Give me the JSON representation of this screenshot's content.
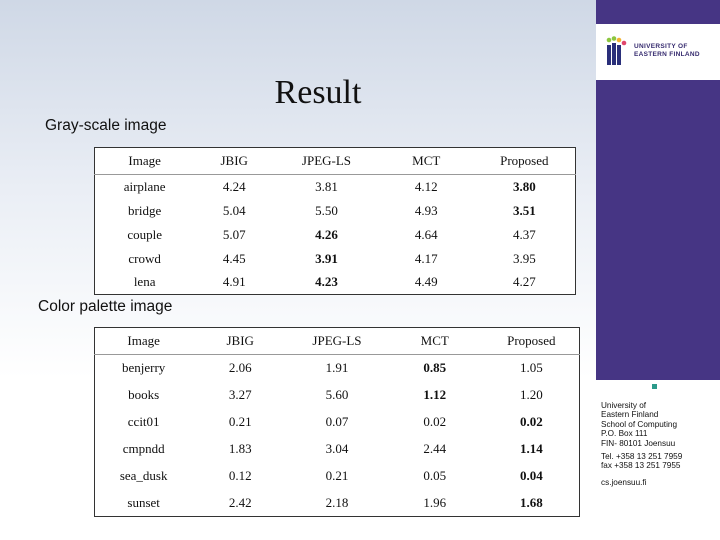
{
  "title": "Result",
  "gray_label": "Gray-scale image",
  "color_label": "Color palette image",
  "logo": {
    "line1": "UNIVERSITY OF",
    "line2": "EASTERN FINLAND"
  },
  "info": {
    "line1": "University of",
    "line2": "Eastern Finland",
    "line3": "School of Computing",
    "line4": "P.O. Box 111",
    "line5": "FIN- 80101 Joensuu",
    "line6": "Tel. +358 13 251 7959",
    "line7": "fax +358 13 251 7955",
    "line8": "cs.joensuu.fi"
  },
  "gray_table": {
    "headers": [
      "Image",
      "JBIG",
      "JPEG-LS",
      "MCT",
      "Proposed"
    ],
    "rows": [
      [
        "airplane",
        "4.24",
        "3.81",
        "4.12",
        "3.80"
      ],
      [
        "bridge",
        "5.04",
        "5.50",
        "4.93",
        "3.51"
      ],
      [
        "couple",
        "5.07",
        "4.26",
        "4.64",
        "4.37"
      ],
      [
        "crowd",
        "4.45",
        "3.91",
        "4.17",
        "3.95"
      ],
      [
        "lena",
        "4.91",
        "4.23",
        "4.49",
        "4.27"
      ]
    ]
  },
  "color_table": {
    "headers": [
      "Image",
      "JBIG",
      "JPEG-LS",
      "MCT",
      "Proposed"
    ],
    "rows": [
      [
        "benjerry",
        "2.06",
        "1.91",
        "0.85",
        "1.05"
      ],
      [
        "books",
        "3.27",
        "5.60",
        "1.12",
        "1.20"
      ],
      [
        "ccit01",
        "0.21",
        "0.07",
        "0.02",
        "0.02"
      ],
      [
        "cmpndd",
        "1.83",
        "3.04",
        "2.44",
        "1.14"
      ],
      [
        "sea_dusk",
        "0.12",
        "0.21",
        "0.05",
        "0.04"
      ],
      [
        "sunset",
        "2.42",
        "2.18",
        "1.96",
        "1.68"
      ]
    ]
  },
  "colors": {
    "panel": "#463584",
    "accent": "#2b9a8a"
  }
}
